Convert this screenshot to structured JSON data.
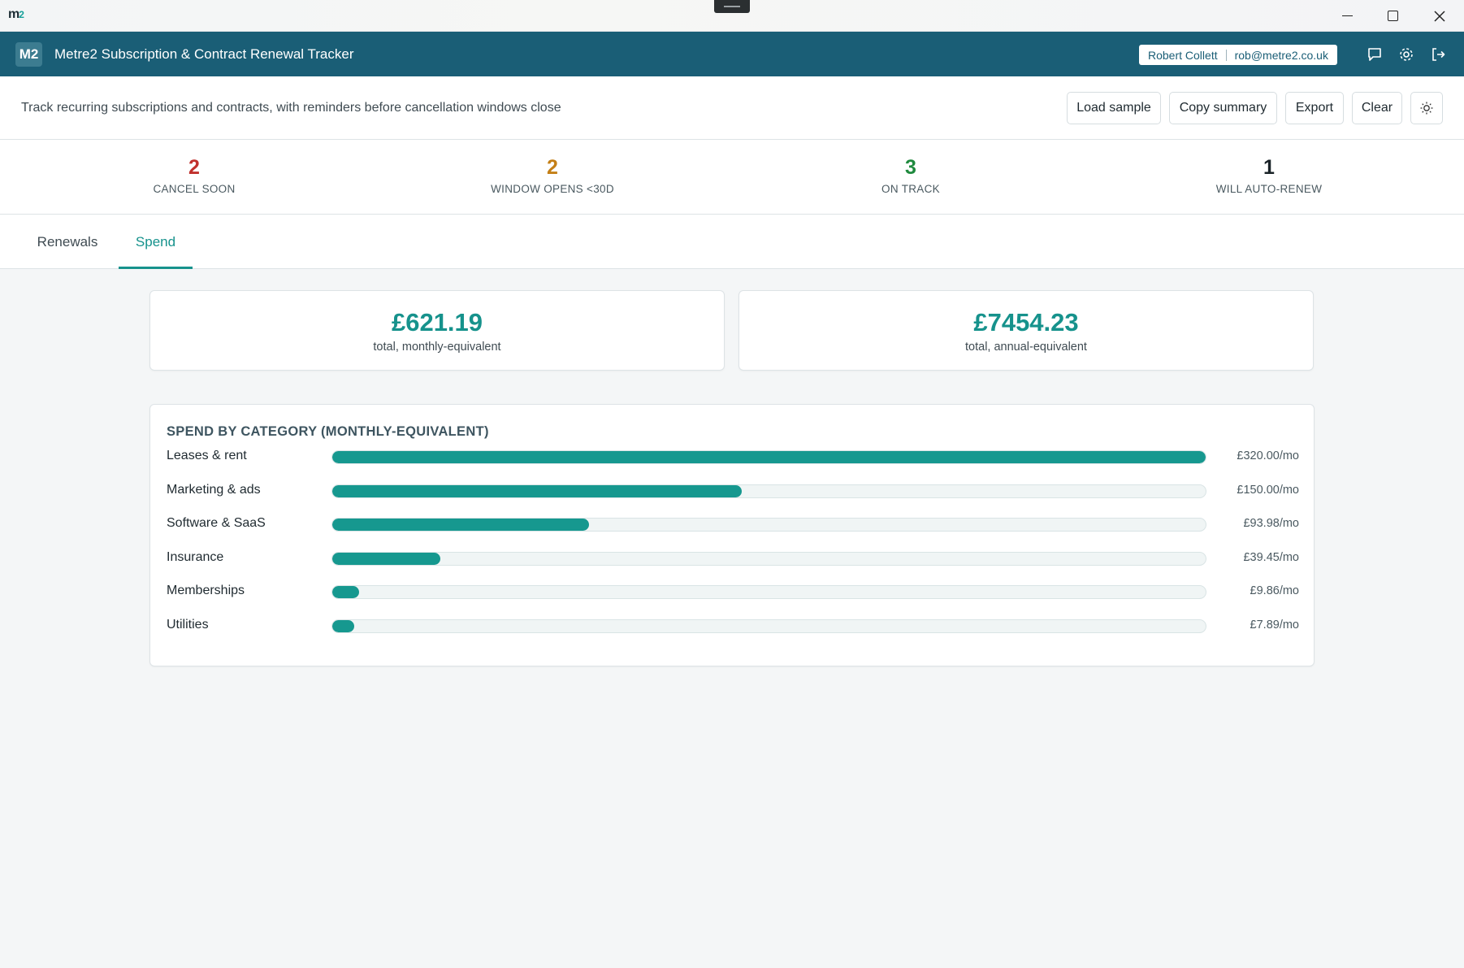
{
  "window": {
    "logo_text": "m",
    "logo_accent": "2"
  },
  "header": {
    "badge": "M2",
    "title": "Metre2 Subscription & Contract Renewal Tracker",
    "user_name": "Robert Collett",
    "user_email": "rob@metre2.co.uk",
    "icons": [
      "chat-icon",
      "gear-icon",
      "logout-icon"
    ]
  },
  "toolbar": {
    "description": "Track recurring subscriptions and contracts, with reminders before cancellation windows close",
    "buttons": {
      "load_sample": "Load sample",
      "copy_summary": "Copy summary",
      "export": "Export",
      "clear": "Clear"
    },
    "theme_icon": "sun-icon"
  },
  "stats": [
    {
      "value": "2",
      "label": "CANCEL SOON",
      "color": "#c0302c"
    },
    {
      "value": "2",
      "label": "WINDOW OPENS <30D",
      "color": "#c47f16"
    },
    {
      "value": "3",
      "label": "ON TRACK",
      "color": "#1f8a3e"
    },
    {
      "value": "1",
      "label": "WILL AUTO-RENEW",
      "color": "#1a2328"
    }
  ],
  "tabs": [
    {
      "label": "Renewals",
      "active": false
    },
    {
      "label": "Spend",
      "active": true
    }
  ],
  "totals": {
    "monthly_value": "£621.19",
    "monthly_label": "total, monthly-equivalent",
    "annual_value": "£7454.23",
    "annual_label": "total, annual-equivalent"
  },
  "chart_data": {
    "type": "bar",
    "title": "SPEND BY CATEGORY (MONTHLY-EQUIVALENT)",
    "orientation": "horizontal",
    "categories": [
      "Leases & rent",
      "Marketing & ads",
      "Software & SaaS",
      "Insurance",
      "Memberships",
      "Utilities"
    ],
    "values": [
      320.0,
      150.0,
      93.98,
      39.45,
      9.86,
      7.89
    ],
    "value_labels": [
      "£320.00/mo",
      "£150.00/mo",
      "£93.98/mo",
      "£39.45/mo",
      "£9.86/mo",
      "£7.89/mo"
    ],
    "xlim": [
      0,
      320
    ],
    "color": "#16988f"
  }
}
